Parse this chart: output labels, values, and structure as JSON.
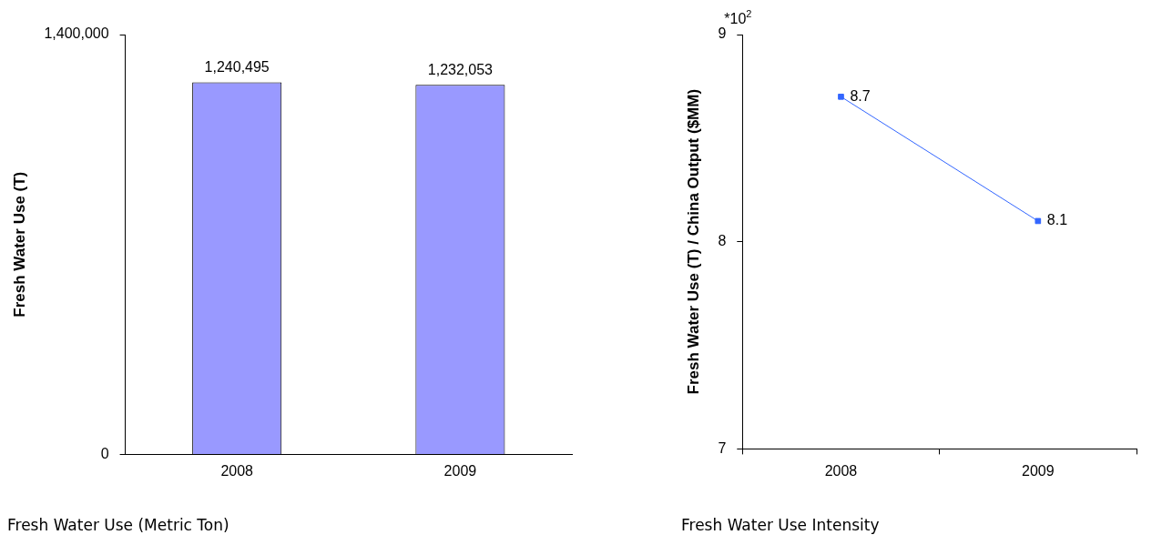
{
  "chart_data": [
    {
      "type": "bar",
      "title": "Fresh Water Use (Metric Ton)",
      "ylabel": "Fresh Water Use (T)",
      "categories": [
        "2008",
        "2009"
      ],
      "values": [
        1240495,
        1232053
      ],
      "value_labels": [
        "1,240,495",
        "1,232,053"
      ],
      "color": "#9999ff",
      "ylim": [
        0,
        1400000
      ],
      "yticks": [
        0,
        {
          "value": 1400000,
          "label": "1,400,000"
        }
      ],
      "grid": false,
      "legend": false
    },
    {
      "type": "line",
      "title": "Fresh Water Use Intensity",
      "ylabel": "Fresh Water Use (T) / China Output ($MM)",
      "annotations": [
        "*10$^{2}$"
      ],
      "categories": [
        "2008",
        "2009"
      ],
      "values": [
        8.7,
        8.1
      ],
      "data_labels": true,
      "color": "#3366ff",
      "marker": "square",
      "line_style": "solid",
      "ylim": [
        7,
        9
      ],
      "yticks": [
        7,
        8,
        9
      ],
      "grid": false,
      "legend": false
    }
  ]
}
